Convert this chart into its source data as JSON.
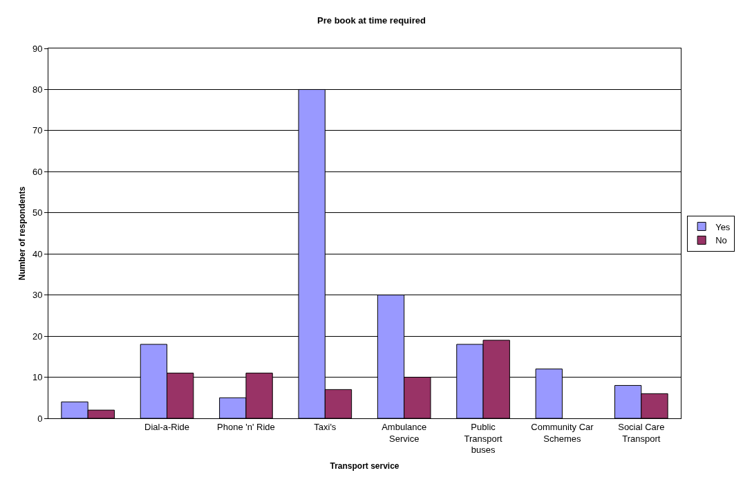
{
  "chart_data": {
    "type": "bar",
    "title": "Pre book at time required",
    "xlabel": "Transport service",
    "ylabel": "Number of respondents",
    "categories": [
      null,
      "Dial-a-Ride",
      "Phone 'n' Ride",
      "Taxi's",
      "Ambulance Service",
      "Public Transport buses",
      "Community Car Schemes",
      "Social Care Transport"
    ],
    "series": [
      {
        "name": "Yes",
        "color": "#9999ff",
        "values": [
          4,
          18,
          5,
          80,
          30,
          18,
          12,
          8
        ]
      },
      {
        "name": "No",
        "color": "#993366",
        "values": [
          2,
          11,
          11,
          7,
          10,
          19,
          null,
          6
        ]
      }
    ],
    "ylim": [
      0,
      90
    ],
    "yticks": [
      0,
      10,
      20,
      30,
      40,
      50,
      60,
      70,
      80,
      90
    ],
    "grid": "y",
    "legend": "right"
  }
}
